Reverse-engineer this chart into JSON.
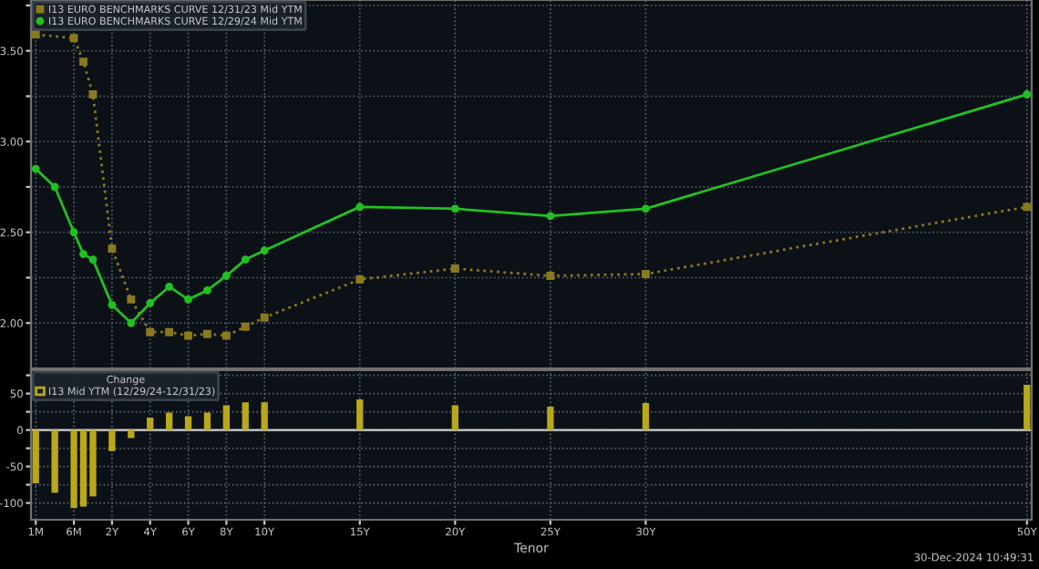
{
  "chart_data": [
    {
      "type": "line",
      "categories": [
        null,
        null,
        null,
        null,
        null,
        null,
        null,
        null,
        null,
        null,
        null,
        null,
        null,
        null,
        null,
        null,
        null,
        null,
        null,
        null,
        null,
        null,
        null,
        null,
        null,
        null,
        null,
        null,
        null,
        null,
        null,
        null,
        null,
        null,
        null,
        null,
        null,
        null,
        null,
        null,
        null,
        null,
        null,
        null,
        null,
        null,
        null,
        null,
        null,
        null,
        null,
        null,
        null,
        null,
        null,
        null,
        null,
        null,
        null,
        null,
        null,
        null,
        null,
        null,
        null,
        null,
        null,
        null,
        null,
        null,
        null,
        null,
        null,
        null,
        null,
        null,
        null,
        null,
        null,
        null,
        null,
        null,
        null,
        null,
        null,
        null,
        null,
        null,
        null,
        null,
        null,
        null,
        null,
        null,
        null,
        null,
        null,
        null,
        null,
        null,
        null,
        null,
        null,
        null,
        null
      ],
      "series": [
        {
          "name": "I13 EURO BENCHMARKS CURVE 12/31/23 Mid YTM",
          "color": "#8a7a1e",
          "marker": "square",
          "line_style": "dotted",
          "values": [
            3.59,
            null,
            null,
            null,
            3.57,
            3.44,
            3.26,
            null,
            2.41,
            null,
            2.13,
            null,
            1.95,
            null,
            1.95,
            null,
            1.93,
            null,
            1.94,
            null,
            1.93,
            null,
            1.98,
            null,
            2.03,
            null,
            null,
            null,
            null,
            null,
            null,
            null,
            null,
            null,
            2.24,
            null,
            null,
            null,
            null,
            null,
            null,
            null,
            null,
            null,
            2.3,
            null,
            null,
            null,
            null,
            null,
            null,
            null,
            null,
            null,
            2.26,
            null,
            null,
            null,
            null,
            null,
            null,
            null,
            null,
            null,
            2.27,
            null,
            null,
            null,
            null,
            null,
            null,
            null,
            null,
            null,
            null,
            null,
            null,
            null,
            null,
            null,
            null,
            null,
            null,
            null,
            null,
            null,
            null,
            null,
            null,
            null,
            null,
            null,
            null,
            null,
            null,
            null,
            null,
            null,
            null,
            null,
            null,
            null,
            null,
            null,
            2.64
          ]
        },
        {
          "name": "I13 EURO BENCHMARKS CURVE 12/29/24 Mid YTM",
          "color": "#22c022",
          "marker": "circle",
          "line_style": "solid",
          "values": [
            2.85,
            null,
            2.75,
            null,
            2.5,
            2.38,
            2.35,
            null,
            2.1,
            null,
            2.0,
            null,
            2.11,
            null,
            2.2,
            null,
            2.13,
            null,
            2.18,
            null,
            2.26,
            null,
            2.35,
            null,
            2.4,
            null,
            null,
            null,
            null,
            null,
            null,
            null,
            null,
            null,
            2.64,
            null,
            null,
            null,
            null,
            null,
            null,
            null,
            null,
            null,
            2.63,
            null,
            null,
            null,
            null,
            null,
            null,
            null,
            null,
            null,
            2.59,
            null,
            null,
            null,
            null,
            null,
            null,
            null,
            null,
            null,
            2.63,
            null,
            null,
            null,
            null,
            null,
            null,
            null,
            null,
            null,
            null,
            null,
            null,
            null,
            null,
            null,
            null,
            null,
            null,
            null,
            null,
            null,
            null,
            null,
            null,
            null,
            null,
            null,
            null,
            null,
            null,
            null,
            null,
            null,
            null,
            null,
            null,
            null,
            null,
            null,
            3.26
          ]
        }
      ],
      "ylim": [
        1.75,
        3.78
      ],
      "yticks": [
        {
          "value": 2.0,
          "label": "2.00"
        },
        {
          "value": 2.25,
          "label": null
        },
        {
          "value": 2.5,
          "label": "2.50"
        },
        {
          "value": 2.75,
          "label": null
        },
        {
          "value": 3.0,
          "label": "3.00"
        },
        {
          "value": 3.25,
          "label": null
        },
        {
          "value": 3.5,
          "label": "3.50"
        },
        {
          "value": 3.75,
          "label": null
        }
      ],
      "tick_labels": "y",
      "grid": true,
      "legend": "top left"
    },
    {
      "type": "bar",
      "categories": [
        "1M",
        null,
        null,
        null,
        "6M",
        null,
        null,
        null,
        "2Y",
        null,
        null,
        null,
        "4Y",
        null,
        null,
        null,
        "6Y",
        null,
        null,
        null,
        "8Y",
        null,
        null,
        null,
        "10Y",
        null,
        null,
        null,
        null,
        null,
        null,
        null,
        null,
        null,
        "15Y",
        null,
        null,
        null,
        null,
        null,
        null,
        null,
        null,
        null,
        "20Y",
        null,
        null,
        null,
        null,
        null,
        null,
        null,
        null,
        null,
        "25Y",
        null,
        null,
        null,
        null,
        null,
        null,
        null,
        null,
        null,
        "30Y",
        null,
        null,
        null,
        null,
        null,
        null,
        null,
        null,
        null,
        null,
        null,
        null,
        null,
        null,
        null,
        null,
        null,
        null,
        null,
        null,
        null,
        null,
        null,
        null,
        null,
        null,
        null,
        null,
        null,
        null,
        null,
        null,
        null,
        null,
        null,
        null,
        null,
        null,
        null,
        "50Y"
      ],
      "series": [
        {
          "name": "I13 Mid YTM (12/29/24-12/31/23)",
          "color": "#b8a81a",
          "values": [
            -73,
            null,
            -86,
            null,
            -107,
            -105,
            -91,
            null,
            -29,
            null,
            -11,
            null,
            17,
            null,
            24,
            null,
            19,
            null,
            24,
            null,
            34,
            null,
            38,
            null,
            38,
            null,
            null,
            null,
            null,
            null,
            null,
            null,
            null,
            null,
            42,
            null,
            null,
            null,
            null,
            null,
            null,
            null,
            null,
            null,
            34,
            null,
            null,
            null,
            null,
            null,
            null,
            null,
            null,
            null,
            32,
            null,
            null,
            null,
            null,
            null,
            null,
            null,
            null,
            null,
            37,
            null,
            null,
            null,
            null,
            null,
            null,
            null,
            null,
            null,
            null,
            null,
            null,
            null,
            null,
            null,
            null,
            null,
            null,
            null,
            null,
            null,
            null,
            null,
            null,
            null,
            null,
            null,
            null,
            null,
            null,
            null,
            null,
            null,
            null,
            null,
            null,
            null,
            null,
            null,
            62
          ]
        }
      ],
      "legend_title": "Change",
      "ylim": [
        -123,
        82
      ],
      "yticks": [
        {
          "value": -100,
          "label": "-100"
        },
        {
          "value": -75,
          "label": null
        },
        {
          "value": -50,
          "label": "-50"
        },
        {
          "value": -25,
          "label": null
        },
        {
          "value": 0,
          "label": "0"
        },
        {
          "value": 25,
          "label": null
        },
        {
          "value": 50,
          "label": "50"
        },
        {
          "value": 75,
          "label": null
        }
      ],
      "xlabel": "Tenor",
      "annotations": [
        "30-Dec-2024 10:49:31"
      ],
      "grid": true,
      "legend": "top left"
    }
  ]
}
